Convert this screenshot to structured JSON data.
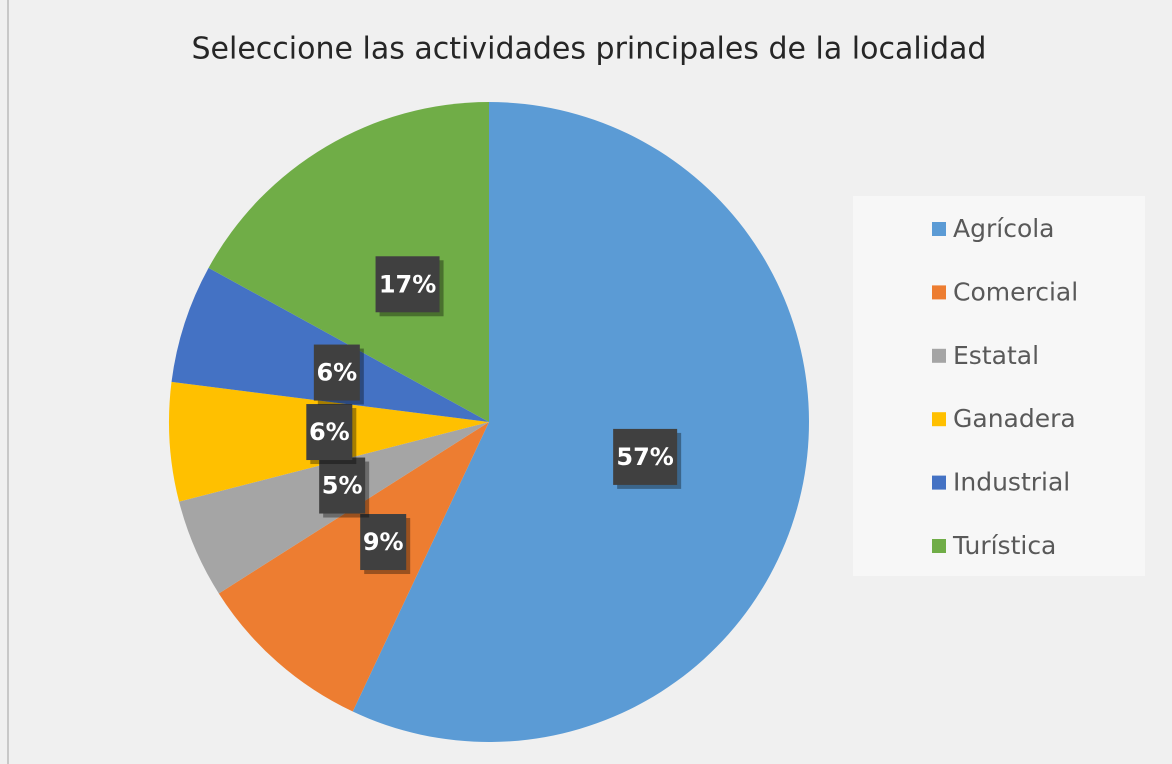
{
  "chart_data": {
    "type": "pie",
    "title": "Seleccione las actividades principales de la localidad",
    "categories": [
      "Agrícola",
      "Comercial",
      "Estatal",
      "Ganadera",
      "Industrial",
      "Turística"
    ],
    "values": [
      57,
      9,
      5,
      6,
      6,
      17
    ],
    "value_labels": [
      "57%",
      "9%",
      "5%",
      "6%",
      "6%",
      "17%"
    ],
    "colors": [
      "#5b9bd5",
      "#ed7d31",
      "#a5a5a5",
      "#ffc000",
      "#4472c4",
      "#70ad47"
    ],
    "legend": "right"
  }
}
